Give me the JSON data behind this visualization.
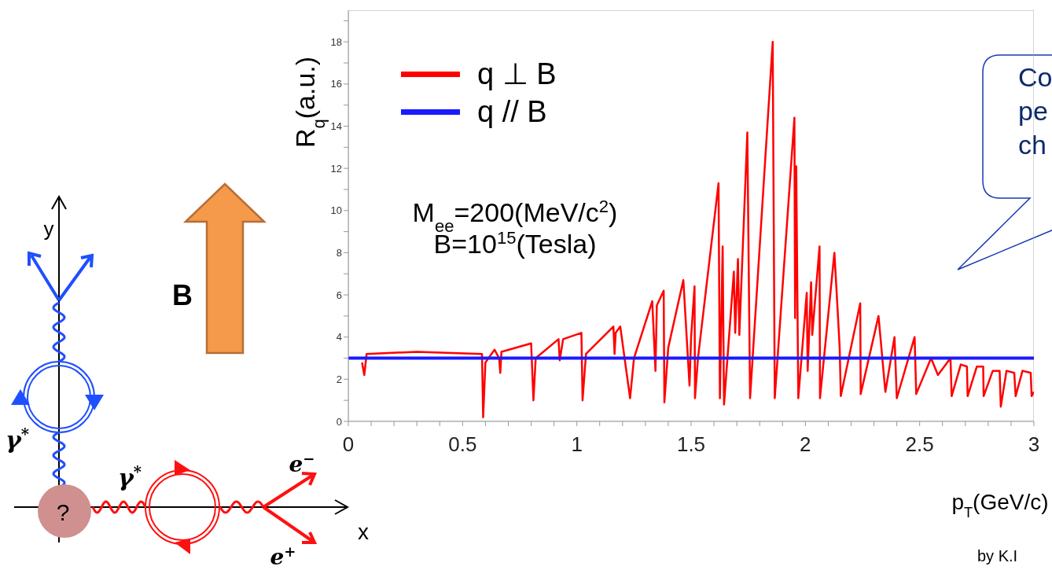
{
  "chart_data": {
    "type": "line",
    "xlabel": "p$_{T}$(GeV/c)",
    "ylabel": "R$_{q}$(a.u.)",
    "xlim": [
      0,
      3
    ],
    "ylim": [
      0,
      19.5
    ],
    "xticks": [
      0,
      {
        "value": 0.1,
        "label": null
      },
      {
        "value": 0.2,
        "label": null
      },
      {
        "value": 0.3,
        "label": null
      },
      {
        "value": 0.4,
        "label": null
      },
      0.5,
      {
        "value": 0.6,
        "label": null
      },
      {
        "value": 0.7,
        "label": null
      },
      {
        "value": 0.8,
        "label": null
      },
      {
        "value": 0.9,
        "label": null
      },
      1,
      {
        "value": 1.1,
        "label": null
      },
      {
        "value": 1.2,
        "label": null
      },
      {
        "value": 1.3,
        "label": null
      },
      {
        "value": 1.4,
        "label": null
      },
      1.5,
      {
        "value": 1.6,
        "label": null
      },
      {
        "value": 1.7,
        "label": null
      },
      {
        "value": 1.8,
        "label": null
      },
      {
        "value": 1.9,
        "label": null
      },
      2,
      {
        "value": 2.1,
        "label": null
      },
      {
        "value": 2.2,
        "label": null
      },
      {
        "value": 2.3,
        "label": null
      },
      {
        "value": 2.4,
        "label": null
      },
      2.5,
      {
        "value": 2.6,
        "label": null
      },
      {
        "value": 2.7,
        "label": null
      },
      {
        "value": 2.8,
        "label": null
      },
      {
        "value": 2.9,
        "label": null
      },
      3
    ],
    "yticks": [
      0,
      {
        "value": 1,
        "label": null
      },
      2,
      {
        "value": 3,
        "label": null
      },
      4,
      {
        "value": 5,
        "label": null
      },
      6,
      {
        "value": 7,
        "label": null
      },
      8,
      {
        "value": 9,
        "label": null
      },
      10,
      {
        "value": 11,
        "label": null
      },
      12,
      {
        "value": 13,
        "label": null
      },
      14,
      {
        "value": 15,
        "label": null
      },
      16,
      {
        "value": 17,
        "label": null
      },
      18,
      {
        "value": 19,
        "label": null
      }
    ],
    "legend": "top left",
    "marker": "none",
    "line_style": "solid",
    "series": [
      {
        "name": "q ⊥ B",
        "color": "#ff0000",
        "x": [
          0.06,
          0.07,
          0.08,
          0.3,
          0.585,
          0.59,
          0.6,
          0.64,
          0.66,
          0.665,
          0.67,
          0.8,
          0.81,
          0.82,
          0.92,
          0.925,
          0.94,
          1.02,
          1.025,
          1.04,
          1.16,
          1.165,
          1.17,
          1.19,
          1.233,
          1.25,
          1.33,
          1.344,
          1.35,
          1.38,
          1.383,
          1.4,
          1.466,
          1.493,
          1.5,
          1.515,
          1.517,
          1.53,
          1.62,
          1.626,
          1.638,
          1.644,
          1.687,
          1.693,
          1.705,
          1.711,
          1.746,
          1.758,
          1.857,
          1.866,
          1.952,
          1.955,
          1.96,
          1.969,
          2.006,
          2.01,
          2.025,
          2.03,
          2.062,
          2.064,
          2.127,
          2.14,
          2.15,
          2.155,
          2.24,
          2.242,
          2.32,
          2.35,
          2.39,
          2.4,
          2.478,
          2.485,
          2.55,
          2.58,
          2.635,
          2.64,
          2.68,
          2.707,
          2.71,
          2.75,
          2.778,
          2.78,
          2.82,
          2.85,
          2.855,
          2.88,
          2.914,
          2.92,
          2.95,
          2.986,
          2.99,
          3.0
        ],
        "values": [
          2.8,
          2.2,
          3.2,
          3.3,
          3.2,
          0.2,
          2.8,
          3.4,
          3.0,
          2.3,
          3.3,
          3.7,
          1.0,
          3.0,
          3.9,
          2.9,
          3.9,
          4.2,
          1.0,
          3.2,
          4.5,
          3.2,
          4.2,
          4.5,
          1.1,
          3.0,
          5.7,
          2.4,
          5.5,
          6.2,
          0.9,
          3.5,
          6.7,
          1.7,
          4.0,
          6.4,
          1.1,
          3.0,
          11.3,
          1.1,
          8.3,
          0.8,
          7.1,
          4.2,
          7.7,
          4.1,
          13.7,
          1.1,
          18.0,
          1.1,
          14.4,
          4.9,
          12.1,
          1.1,
          6.1,
          2.4,
          6.6,
          4.1,
          8.3,
          1.1,
          8.0,
          5.5,
          3.5,
          1.2,
          5.6,
          1.3,
          5.0,
          1.4,
          4.0,
          1.1,
          4.0,
          1.3,
          3.0,
          2.2,
          3.0,
          1.2,
          2.7,
          2.6,
          1.2,
          2.6,
          2.6,
          1.2,
          2.4,
          2.4,
          0.7,
          2.4,
          2.3,
          1.2,
          2.4,
          2.3,
          1.2,
          1.4
        ]
      },
      {
        "name": "q // B",
        "color": "#1a1aff",
        "x": [
          0,
          3
        ],
        "values": [
          3,
          3
        ]
      }
    ],
    "annotations": [
      "M$_{ee}$=200(MeV/c$^{2}$)",
      "B=10$^{15}$(Tesla)",
      "Co",
      "pe",
      "ch",
      "by K.I",
      "B",
      "y",
      "x",
      "γ$^{*}$",
      "γ$^{*}$",
      "e$^{−}$",
      "e$^{+}$",
      "?"
    ]
  }
}
